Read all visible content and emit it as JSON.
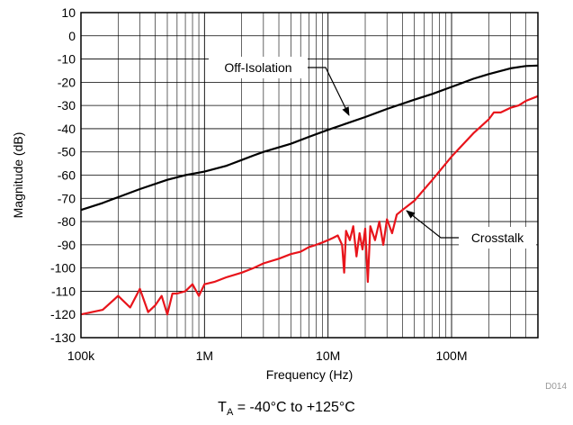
{
  "chart_data": {
    "type": "line",
    "xlabel": "Frequency (Hz)",
    "ylabel": "Magnitude (dB)",
    "xscale": "log",
    "xlim": [
      100000,
      500000000
    ],
    "ylim": [
      -130,
      10
    ],
    "grid": true,
    "x_tick_labels": [
      {
        "value": 100000,
        "label": "100k"
      },
      {
        "value": 1000000,
        "label": "1M"
      },
      {
        "value": 10000000,
        "label": "10M"
      },
      {
        "value": 100000000,
        "label": "100M"
      }
    ],
    "y_ticks": [
      10,
      0,
      -10,
      -20,
      -30,
      -40,
      -50,
      -60,
      -70,
      -80,
      -90,
      -100,
      -110,
      -120,
      -130
    ],
    "series": [
      {
        "name": "Off-Isolation",
        "color": "#000000",
        "x": [
          100000,
          150000,
          200000,
          300000,
          500000,
          700000,
          1000000,
          1500000,
          2000000,
          2500000,
          3000000,
          5000000,
          7000000,
          10000000,
          20000000,
          30000000,
          50000000,
          70000000,
          100000000,
          150000000,
          200000000,
          300000000,
          400000000,
          500000000
        ],
        "values": [
          -75,
          -72,
          -69.5,
          -66,
          -62,
          -60,
          -58.5,
          -56,
          -53.5,
          -51.5,
          -50,
          -46.5,
          -43.5,
          -40.5,
          -35,
          -31.5,
          -27.5,
          -25,
          -22,
          -18.5,
          -16.5,
          -14,
          -13,
          -12.8
        ]
      },
      {
        "name": "Crosstalk",
        "color": "#e8141b",
        "x": [
          100000,
          150000,
          200000,
          250000,
          300000,
          350000,
          400000,
          450000,
          500000,
          550000,
          600000,
          700000,
          800000,
          900000,
          1000000,
          1200000,
          1500000,
          2000000,
          2500000,
          3000000,
          4000000,
          5000000,
          6000000,
          7000000,
          8000000,
          9000000,
          10000000,
          11000000,
          12000000,
          13000000,
          13500000,
          14000000,
          15000000,
          16000000,
          17000000,
          18000000,
          19000000,
          20000000,
          21000000,
          22000000,
          24000000,
          26000000,
          28000000,
          30000000,
          33000000,
          36000000,
          40000000,
          50000000,
          70000000,
          100000000,
          150000000,
          200000000,
          220000000,
          250000000,
          300000000,
          350000000,
          400000000,
          500000000
        ],
        "values": [
          -120,
          -118,
          -112,
          -117,
          -109,
          -119,
          -116,
          -112,
          -120,
          -111,
          -111,
          -110,
          -107,
          -112,
          -107,
          -106,
          -104,
          -102,
          -100,
          -98,
          -96,
          -94,
          -93,
          -91,
          -90,
          -89,
          -88,
          -87,
          -86,
          -90,
          -102,
          -84,
          -88,
          -82,
          -95,
          -85,
          -92,
          -83,
          -106,
          -82,
          -88,
          -80,
          -90,
          -79,
          -85,
          -77,
          -75,
          -71,
          -62,
          -52,
          -42,
          -36,
          -33,
          -33,
          -31,
          -30,
          -28,
          -26
        ]
      }
    ],
    "annotations": [
      {
        "text": "Off-Isolation",
        "series": "Off-Isolation"
      },
      {
        "text": "Crosstalk",
        "series": "Crosstalk"
      }
    ],
    "figure_id": "D014",
    "condition_text": {
      "prefix": "T",
      "subscript": "A",
      "suffix": " = -40°C to +125°C"
    }
  }
}
